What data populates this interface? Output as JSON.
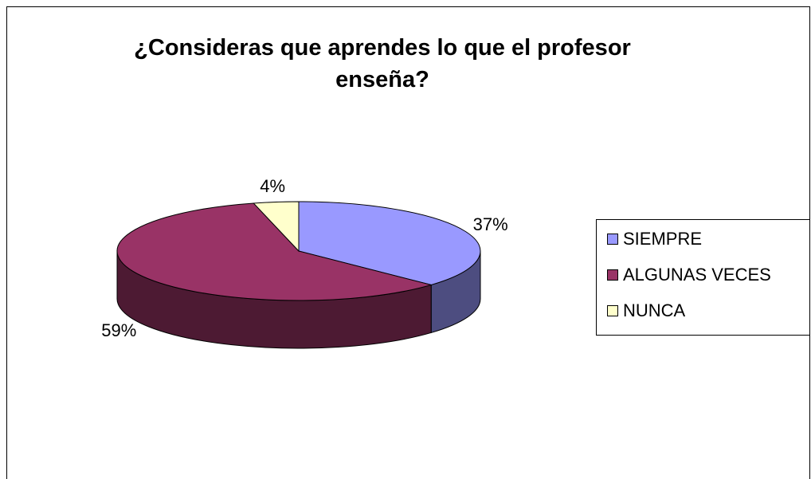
{
  "chart_data": {
    "type": "pie",
    "title": "¿Consideras que aprendes lo que el profesor enseña?",
    "categories": [
      "SIEMPRE",
      "ALGUNAS VECES",
      "NUNCA"
    ],
    "values": [
      37,
      59,
      4
    ],
    "value_labels": [
      "37%",
      "59%",
      "4%"
    ],
    "colors": [
      "#9999ff",
      "#993366",
      "#ffffcc"
    ],
    "legend": "right"
  }
}
